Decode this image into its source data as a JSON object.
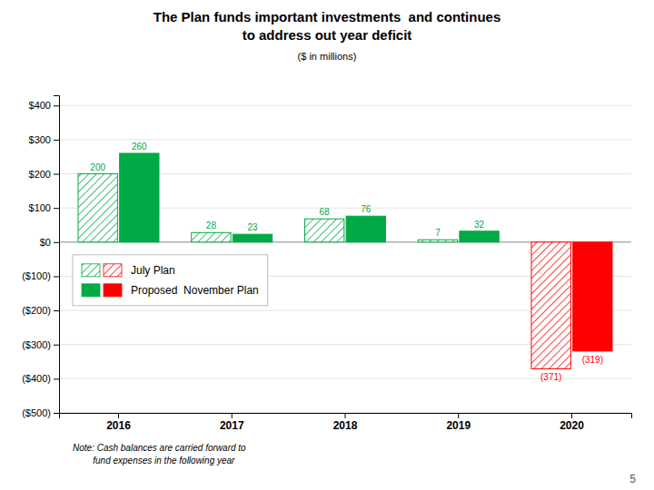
{
  "chart_data": {
    "type": "bar",
    "title": "The Plan funds important investments  and continues\nto address out year deficit",
    "subtitle": "($ in millions)",
    "categories": [
      "2016",
      "2017",
      "2018",
      "2019",
      "2020"
    ],
    "series": [
      {
        "name": "July Plan",
        "values": [
          200,
          28,
          68,
          7,
          -371
        ],
        "value_labels": [
          "200",
          "28",
          "68",
          "7",
          "(371)"
        ],
        "colors": [
          "#00aa44",
          "#00aa44",
          "#00aa44",
          "#00aa44",
          "#ff0000"
        ]
      },
      {
        "name": "Proposed  November Plan",
        "values": [
          260,
          23,
          76,
          32,
          -319
        ],
        "value_labels": [
          "260",
          "23",
          "76",
          "32",
          "(319)"
        ],
        "colors": [
          "#00aa44",
          "#00aa44",
          "#00aa44",
          "#00aa44",
          "#ff0000"
        ]
      }
    ],
    "ylim": [
      -500,
      430
    ],
    "yticks": [
      {
        "value": -500,
        "label": "($500)"
      },
      {
        "value": -400,
        "label": "($400)"
      },
      {
        "value": -300,
        "label": "($300)"
      },
      {
        "value": -200,
        "label": "($200)"
      },
      {
        "value": -100,
        "label": "($100)"
      },
      {
        "value": 0,
        "label": "$0"
      },
      {
        "value": 100,
        "label": "$100"
      },
      {
        "value": 200,
        "label": "$200"
      },
      {
        "value": 300,
        "label": "$300"
      },
      {
        "value": 400,
        "label": "$400"
      }
    ],
    "grid": true,
    "legend": "lower left",
    "data_labels": true,
    "annotations": [
      "Note: Cash balances are carried forward to\n        fund expenses in the following year",
      "5"
    ]
  }
}
